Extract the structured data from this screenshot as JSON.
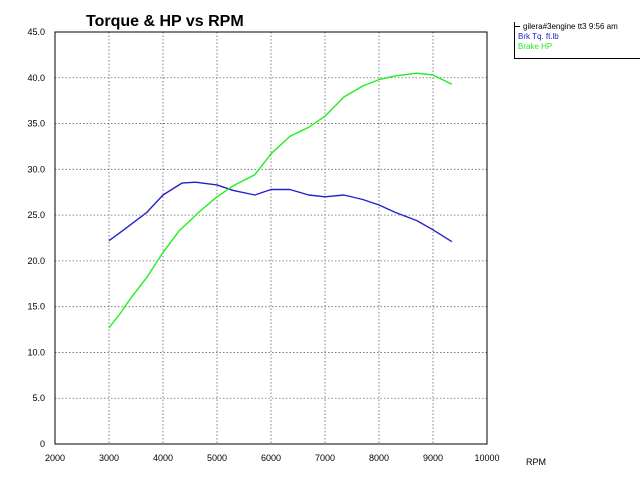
{
  "chart_data": {
    "type": "line",
    "title": "Torque & HP vs RPM",
    "xlabel": "RPM",
    "ylabel": "",
    "xlim": [
      2000,
      10000
    ],
    "ylim": [
      0,
      45
    ],
    "xticks": [
      "2000",
      "3000",
      "4000",
      "5000",
      "6000",
      "7000",
      "8000",
      "9000",
      "10000"
    ],
    "yticks": [
      "0",
      "5.0",
      "10.0",
      "15.0",
      "20.0",
      "25.0",
      "30.0",
      "35.0",
      "40.0",
      "45.0"
    ],
    "grid": true,
    "legend_position": "top-right",
    "legend_title": "gilera#3engine tt3 9:56 am",
    "series": [
      {
        "name": "Brk Tq. ft.lb",
        "color": "#2222cc",
        "x": [
          3000,
          3300,
          3700,
          4000,
          4350,
          4600,
          5000,
          5300,
          5700,
          6000,
          6350,
          6700,
          7000,
          7350,
          7700,
          8000,
          8300,
          8700,
          9000,
          9350
        ],
        "y": [
          22.2,
          23.5,
          25.3,
          27.2,
          28.5,
          28.6,
          28.3,
          27.7,
          27.2,
          27.8,
          27.8,
          27.2,
          27.0,
          27.2,
          26.7,
          26.1,
          25.3,
          24.4,
          23.4,
          22.1
        ]
      },
      {
        "name": "Brake HP",
        "color": "#22ee22",
        "x": [
          3000,
          3200,
          3400,
          3700,
          4000,
          4300,
          4700,
          5000,
          5300,
          5700,
          6000,
          6350,
          6700,
          7000,
          7350,
          7700,
          8000,
          8300,
          8700,
          9000,
          9350
        ],
        "y": [
          12.7,
          14.2,
          15.9,
          18.2,
          20.9,
          23.3,
          25.5,
          27.0,
          28.2,
          29.4,
          31.7,
          33.6,
          34.6,
          35.8,
          37.9,
          39.1,
          39.8,
          40.2,
          40.5,
          40.3,
          39.3
        ]
      }
    ]
  }
}
